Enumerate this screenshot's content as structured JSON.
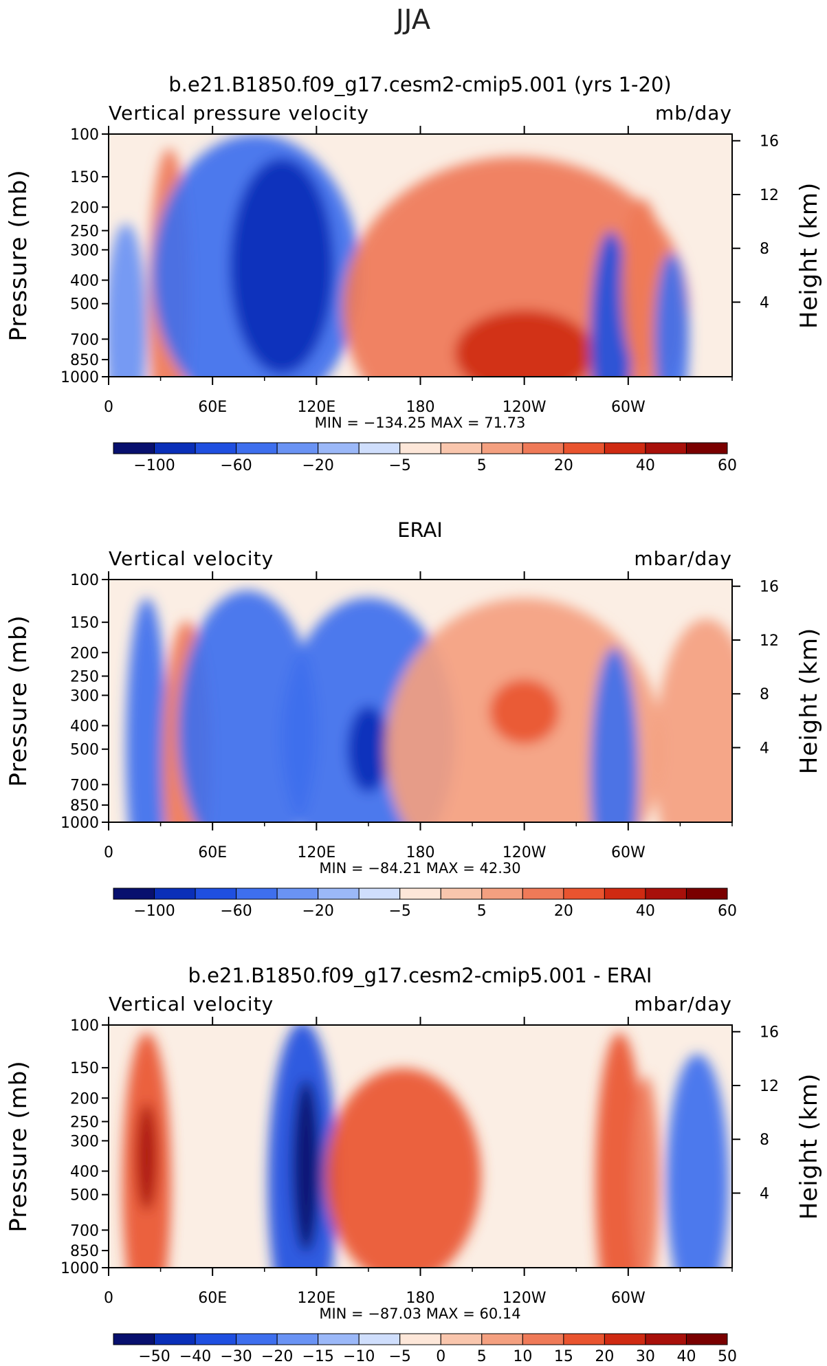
{
  "page_title": "JJA",
  "colors": {
    "neg": [
      "#08106e",
      "#0a2fb8",
      "#1f4fe0",
      "#3e6fee",
      "#6a93f4",
      "#9bb8f8",
      "#cfdefc"
    ],
    "pos": [
      "#fde7d9",
      "#f9c6ad",
      "#f4a080",
      "#ef7a58",
      "#e9542f",
      "#cf2a12",
      "#a8100a",
      "#7a0000"
    ]
  },
  "chart_data": [
    {
      "type": "heatmap",
      "title": "b.e21.B1850.f09_g17.cesm2-cmip5.001 (yrs 1-20)",
      "left_label": "Vertical pressure velocity",
      "right_label": "mb/day",
      "ylabel": "Pressure (mb)",
      "ylabel_right": "Height (km)",
      "y_ticks": [
        "100",
        "150",
        "200",
        "250",
        "300",
        "400",
        "500",
        "700",
        "850",
        "1000"
      ],
      "y_right_ticks": [
        "16",
        "12",
        "8",
        "4"
      ],
      "x_ticks": [
        "0",
        "60E",
        "120E",
        "180",
        "120W",
        "60W"
      ],
      "stats": "MIN = −134.25   MAX =   71.73",
      "colorbar_labels": [
        "−100",
        "−60",
        "−20",
        "−5",
        "5",
        "20",
        "40",
        "60"
      ],
      "cells": [
        {
          "lon": 10,
          "lev": 650,
          "w": 12,
          "h": 500,
          "level": -3
        },
        {
          "lon": 35,
          "lev": 480,
          "w": 12,
          "h": 700,
          "level": 3
        },
        {
          "lon": 85,
          "lev": 380,
          "w": 60,
          "h": 650,
          "level": -4
        },
        {
          "lon": 100,
          "lev": 350,
          "w": 30,
          "h": 500,
          "level": -6
        },
        {
          "lon": 235,
          "lev": 520,
          "w": 100,
          "h": 700,
          "level": 3
        },
        {
          "lon": 240,
          "lev": 800,
          "w": 40,
          "h": 200,
          "level": 5
        },
        {
          "lon": 290,
          "lev": 700,
          "w": 12,
          "h": 500,
          "level": -5
        },
        {
          "lon": 308,
          "lev": 420,
          "w": 12,
          "h": 400,
          "level": 3
        },
        {
          "lon": 325,
          "lev": 700,
          "w": 10,
          "h": 400,
          "level": -4
        }
      ]
    },
    {
      "type": "heatmap",
      "title": "ERAI",
      "left_label": "Vertical velocity",
      "right_label": "mbar/day",
      "ylabel": "Pressure (mb)",
      "ylabel_right": "Height (km)",
      "y_ticks": [
        "100",
        "150",
        "200",
        "250",
        "300",
        "400",
        "500",
        "700",
        "850",
        "1000"
      ],
      "y_right_ticks": [
        "16",
        "12",
        "8",
        "4"
      ],
      "x_ticks": [
        "0",
        "60E",
        "120E",
        "180",
        "120W",
        "60W"
      ],
      "stats": "MIN = −84.21   MAX =   42.30",
      "colorbar_labels": [
        "−100",
        "−60",
        "−20",
        "−5",
        "5",
        "20",
        "40",
        "60"
      ],
      "cells": [
        {
          "lon": 22,
          "lev": 500,
          "w": 12,
          "h": 700,
          "level": -4
        },
        {
          "lon": 45,
          "lev": 560,
          "w": 14,
          "h": 650,
          "level": 3
        },
        {
          "lon": 80,
          "lev": 420,
          "w": 40,
          "h": 650,
          "level": -4
        },
        {
          "lon": 150,
          "lev": 450,
          "w": 50,
          "h": 650,
          "level": -4
        },
        {
          "lon": 150,
          "lev": 500,
          "w": 12,
          "h": 200,
          "level": -6
        },
        {
          "lon": 240,
          "lev": 500,
          "w": 80,
          "h": 700,
          "level": 2
        },
        {
          "lon": 240,
          "lev": 350,
          "w": 20,
          "h": 150,
          "level": 4
        },
        {
          "lon": 292,
          "lev": 650,
          "w": 14,
          "h": 600,
          "level": -4
        },
        {
          "lon": 345,
          "lev": 550,
          "w": 30,
          "h": 650,
          "level": 2
        }
      ]
    },
    {
      "type": "heatmap",
      "title": "b.e21.B1850.f09_g17.cesm2-cmip5.001 - ERAI",
      "left_label": "Vertical velocity",
      "right_label": "mbar/day",
      "ylabel": "Pressure (mb)",
      "ylabel_right": "Height (km)",
      "y_ticks": [
        "100",
        "150",
        "200",
        "250",
        "300",
        "400",
        "500",
        "700",
        "850",
        "1000"
      ],
      "y_right_ticks": [
        "16",
        "12",
        "8",
        "4"
      ],
      "x_ticks": [
        "0",
        "60E",
        "120E",
        "180",
        "120W",
        "60W"
      ],
      "stats": "MIN = −87.03   MAX =   60.14",
      "colorbar_labels": [
        "−50",
        "−40",
        "−30",
        "−20",
        "−15",
        "−10",
        "−5",
        "0",
        "5",
        "10",
        "15",
        "20",
        "30",
        "40",
        "50"
      ],
      "cells": [
        {
          "lon": 22,
          "lev": 450,
          "w": 14,
          "h": 700,
          "level": 4
        },
        {
          "lon": 22,
          "lev": 350,
          "w": 6,
          "h": 250,
          "level": 6
        },
        {
          "lon": 112,
          "lev": 450,
          "w": 20,
          "h": 750,
          "level": -5
        },
        {
          "lon": 114,
          "lev": 380,
          "w": 8,
          "h": 400,
          "level": -7
        },
        {
          "lon": 170,
          "lev": 420,
          "w": 45,
          "h": 500,
          "level": 4
        },
        {
          "lon": 295,
          "lev": 450,
          "w": 14,
          "h": 700,
          "level": 4
        },
        {
          "lon": 310,
          "lev": 450,
          "w": 8,
          "h": 500,
          "level": 3
        },
        {
          "lon": 340,
          "lev": 450,
          "w": 18,
          "h": 600,
          "level": -4
        }
      ]
    }
  ]
}
